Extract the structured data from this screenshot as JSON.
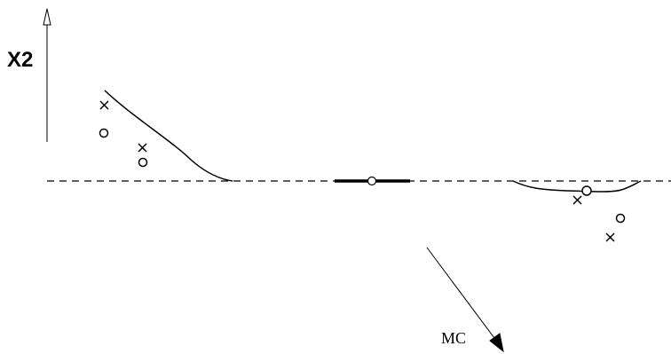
{
  "labels": {
    "vertical_axis": "X2",
    "diagonal_axis": "MC"
  },
  "colors": {
    "stroke": "#000000",
    "background": "#ffffff"
  },
  "markers": {
    "cross_symbol": "x",
    "circle_symbol": "o"
  }
}
